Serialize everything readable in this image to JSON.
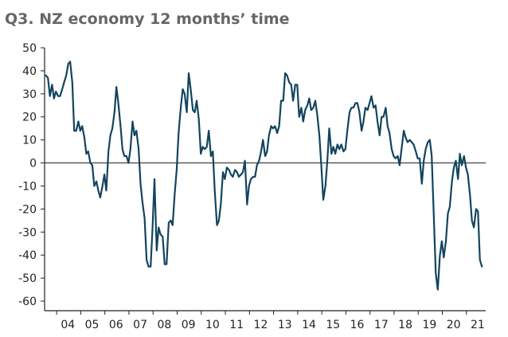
{
  "chart_data": {
    "type": "line",
    "title": "Q3. NZ economy 12 months’ time",
    "xlabel": "",
    "ylabel": "",
    "xlim": [
      2003.5,
      2021.8
    ],
    "ylim": [
      -60,
      50
    ],
    "yticks": [
      50,
      40,
      30,
      20,
      10,
      0,
      -10,
      -20,
      -30,
      -40,
      -50,
      -60
    ],
    "xticks": [
      {
        "label": "04",
        "value": 2004.0
      },
      {
        "label": "05",
        "value": 2005.0
      },
      {
        "label": "06",
        "value": 2006.0
      },
      {
        "label": "07",
        "value": 2007.0
      },
      {
        "label": "08",
        "value": 2008.0
      },
      {
        "label": "09",
        "value": 2009.0
      },
      {
        "label": "10",
        "value": 2010.0
      },
      {
        "label": "11",
        "value": 2011.0
      },
      {
        "label": "12",
        "value": 2012.0
      },
      {
        "label": "13",
        "value": 2013.0
      },
      {
        "label": "14",
        "value": 2014.0
      },
      {
        "label": "15",
        "value": 2015.0
      },
      {
        "label": "16",
        "value": 2016.0
      },
      {
        "label": "17",
        "value": 2017.0
      },
      {
        "label": "18",
        "value": 2018.0
      },
      {
        "label": "19",
        "value": 2019.0
      },
      {
        "label": "20",
        "value": 2020.0
      },
      {
        "label": "21",
        "value": 2021.0
      }
    ],
    "series": [
      {
        "name": "NZ economy 12 months' time",
        "color": "#12445f",
        "points": [
          [
            2003.55,
            38
          ],
          [
            2003.64,
            37
          ],
          [
            2003.72,
            29
          ],
          [
            2003.81,
            34
          ],
          [
            2003.89,
            28
          ],
          [
            2003.97,
            31
          ],
          [
            2004.06,
            29
          ],
          [
            2004.14,
            29
          ],
          [
            2004.23,
            32
          ],
          [
            2004.31,
            35
          ],
          [
            2004.4,
            38
          ],
          [
            2004.48,
            43
          ],
          [
            2004.56,
            44
          ],
          [
            2004.65,
            35
          ],
          [
            2004.73,
            14
          ],
          [
            2004.81,
            14
          ],
          [
            2004.9,
            18
          ],
          [
            2004.98,
            14
          ],
          [
            2005.06,
            16
          ],
          [
            2005.15,
            11
          ],
          [
            2005.23,
            4
          ],
          [
            2005.31,
            5
          ],
          [
            2005.4,
            0
          ],
          [
            2005.48,
            -1
          ],
          [
            2005.56,
            -10
          ],
          [
            2005.65,
            -8
          ],
          [
            2005.73,
            -12
          ],
          [
            2005.81,
            -15
          ],
          [
            2005.9,
            -10
          ],
          [
            2005.98,
            -5
          ],
          [
            2006.06,
            -12
          ],
          [
            2006.15,
            5
          ],
          [
            2006.23,
            12
          ],
          [
            2006.31,
            15
          ],
          [
            2006.4,
            22
          ],
          [
            2006.48,
            33
          ],
          [
            2006.56,
            26
          ],
          [
            2006.65,
            16
          ],
          [
            2006.73,
            6
          ],
          [
            2006.81,
            3
          ],
          [
            2006.9,
            3
          ],
          [
            2006.98,
            0
          ],
          [
            2007.06,
            6
          ],
          [
            2007.15,
            18
          ],
          [
            2007.23,
            12
          ],
          [
            2007.31,
            14
          ],
          [
            2007.4,
            6
          ],
          [
            2007.48,
            -9
          ],
          [
            2007.56,
            -17
          ],
          [
            2007.65,
            -24
          ],
          [
            2007.73,
            -42
          ],
          [
            2007.81,
            -45
          ],
          [
            2007.9,
            -45
          ],
          [
            2007.98,
            -28
          ],
          [
            2008.06,
            -7
          ],
          [
            2008.15,
            -38
          ],
          [
            2008.23,
            -28
          ],
          [
            2008.31,
            -31
          ],
          [
            2008.4,
            -32
          ],
          [
            2008.48,
            -44
          ],
          [
            2008.56,
            -44
          ],
          [
            2008.65,
            -26
          ],
          [
            2008.73,
            -25
          ],
          [
            2008.81,
            -27
          ],
          [
            2008.9,
            -13
          ],
          [
            2008.98,
            -3
          ],
          [
            2009.06,
            13
          ],
          [
            2009.15,
            24
          ],
          [
            2009.23,
            32
          ],
          [
            2009.31,
            30
          ],
          [
            2009.4,
            22
          ],
          [
            2009.48,
            39
          ],
          [
            2009.56,
            32
          ],
          [
            2009.65,
            23
          ],
          [
            2009.73,
            22
          ],
          [
            2009.81,
            27
          ],
          [
            2009.9,
            19
          ],
          [
            2009.98,
            4
          ],
          [
            2010.06,
            7
          ],
          [
            2010.15,
            6
          ],
          [
            2010.23,
            7
          ],
          [
            2010.31,
            14
          ],
          [
            2010.4,
            3
          ],
          [
            2010.48,
            5
          ],
          [
            2010.56,
            -12
          ],
          [
            2010.65,
            -27
          ],
          [
            2010.73,
            -25
          ],
          [
            2010.81,
            -18
          ],
          [
            2010.9,
            -4
          ],
          [
            2010.98,
            -7
          ],
          [
            2011.06,
            -2
          ],
          [
            2011.15,
            -3
          ],
          [
            2011.23,
            -5
          ],
          [
            2011.31,
            -6
          ],
          [
            2011.4,
            -3
          ],
          [
            2011.48,
            -4
          ],
          [
            2011.56,
            -6
          ],
          [
            2011.65,
            -5
          ],
          [
            2011.73,
            -4
          ],
          [
            2011.81,
            1
          ],
          [
            2011.9,
            -18
          ],
          [
            2011.98,
            -10
          ],
          [
            2012.06,
            -7
          ],
          [
            2012.15,
            -6
          ],
          [
            2012.23,
            -6
          ],
          [
            2012.31,
            -1
          ],
          [
            2012.4,
            1
          ],
          [
            2012.48,
            5
          ],
          [
            2012.56,
            10
          ],
          [
            2012.65,
            3
          ],
          [
            2012.73,
            5
          ],
          [
            2012.81,
            12
          ],
          [
            2012.9,
            16
          ],
          [
            2012.98,
            15
          ],
          [
            2013.06,
            16
          ],
          [
            2013.15,
            13
          ],
          [
            2013.23,
            16
          ],
          [
            2013.31,
            27
          ],
          [
            2013.4,
            27
          ],
          [
            2013.48,
            39
          ],
          [
            2013.56,
            38
          ],
          [
            2013.65,
            35
          ],
          [
            2013.73,
            34
          ],
          [
            2013.81,
            27
          ],
          [
            2013.9,
            34
          ],
          [
            2013.98,
            34
          ],
          [
            2014.06,
            20
          ],
          [
            2014.15,
            24
          ],
          [
            2014.23,
            18
          ],
          [
            2014.31,
            23
          ],
          [
            2014.4,
            25
          ],
          [
            2014.48,
            28
          ],
          [
            2014.56,
            23
          ],
          [
            2014.65,
            24
          ],
          [
            2014.73,
            27
          ],
          [
            2014.81,
            21
          ],
          [
            2014.9,
            12
          ],
          [
            2014.98,
            -1
          ],
          [
            2015.06,
            -16
          ],
          [
            2015.15,
            -10
          ],
          [
            2015.23,
            1
          ],
          [
            2015.31,
            15
          ],
          [
            2015.4,
            4
          ],
          [
            2015.48,
            7
          ],
          [
            2015.56,
            4
          ],
          [
            2015.65,
            8
          ],
          [
            2015.73,
            6
          ],
          [
            2015.81,
            8
          ],
          [
            2015.9,
            5
          ],
          [
            2015.98,
            6
          ],
          [
            2016.06,
            14
          ],
          [
            2016.15,
            22
          ],
          [
            2016.23,
            24
          ],
          [
            2016.31,
            24
          ],
          [
            2016.4,
            26
          ],
          [
            2016.48,
            26
          ],
          [
            2016.56,
            22
          ],
          [
            2016.65,
            14
          ],
          [
            2016.73,
            18
          ],
          [
            2016.81,
            24
          ],
          [
            2016.9,
            23
          ],
          [
            2016.98,
            26
          ],
          [
            2017.06,
            29
          ],
          [
            2017.15,
            24
          ],
          [
            2017.23,
            25
          ],
          [
            2017.31,
            18
          ],
          [
            2017.4,
            12
          ],
          [
            2017.48,
            20
          ],
          [
            2017.56,
            20
          ],
          [
            2017.65,
            24
          ],
          [
            2017.73,
            16
          ],
          [
            2017.81,
            13
          ],
          [
            2017.9,
            6
          ],
          [
            2017.98,
            3
          ],
          [
            2018.06,
            2
          ],
          [
            2018.15,
            3
          ],
          [
            2018.23,
            -1
          ],
          [
            2018.31,
            6
          ],
          [
            2018.4,
            14
          ],
          [
            2018.48,
            11
          ],
          [
            2018.56,
            9
          ],
          [
            2018.65,
            10
          ],
          [
            2018.73,
            9
          ],
          [
            2018.81,
            8
          ],
          [
            2018.9,
            5
          ],
          [
            2018.98,
            2
          ],
          [
            2019.06,
            2
          ],
          [
            2019.15,
            -9
          ],
          [
            2019.23,
            1
          ],
          [
            2019.31,
            6
          ],
          [
            2019.4,
            9
          ],
          [
            2019.48,
            10
          ],
          [
            2019.56,
            3
          ],
          [
            2019.65,
            -24
          ],
          [
            2019.73,
            -48
          ],
          [
            2019.81,
            -55
          ],
          [
            2019.9,
            -40
          ],
          [
            2019.98,
            -34
          ],
          [
            2020.06,
            -41
          ],
          [
            2020.15,
            -34
          ],
          [
            2020.23,
            -22
          ],
          [
            2020.31,
            -19
          ],
          [
            2020.4,
            -8
          ],
          [
            2020.48,
            -2
          ],
          [
            2020.56,
            1
          ],
          [
            2020.65,
            -7
          ],
          [
            2020.73,
            4
          ],
          [
            2020.81,
            -1
          ],
          [
            2020.9,
            3
          ],
          [
            2020.98,
            -2
          ],
          [
            2021.06,
            -5
          ],
          [
            2021.15,
            -14
          ],
          [
            2021.23,
            -25
          ],
          [
            2021.31,
            -28
          ],
          [
            2021.4,
            -20
          ],
          [
            2021.48,
            -21
          ],
          [
            2021.56,
            -42
          ],
          [
            2021.64,
            -45
          ]
        ]
      }
    ]
  }
}
